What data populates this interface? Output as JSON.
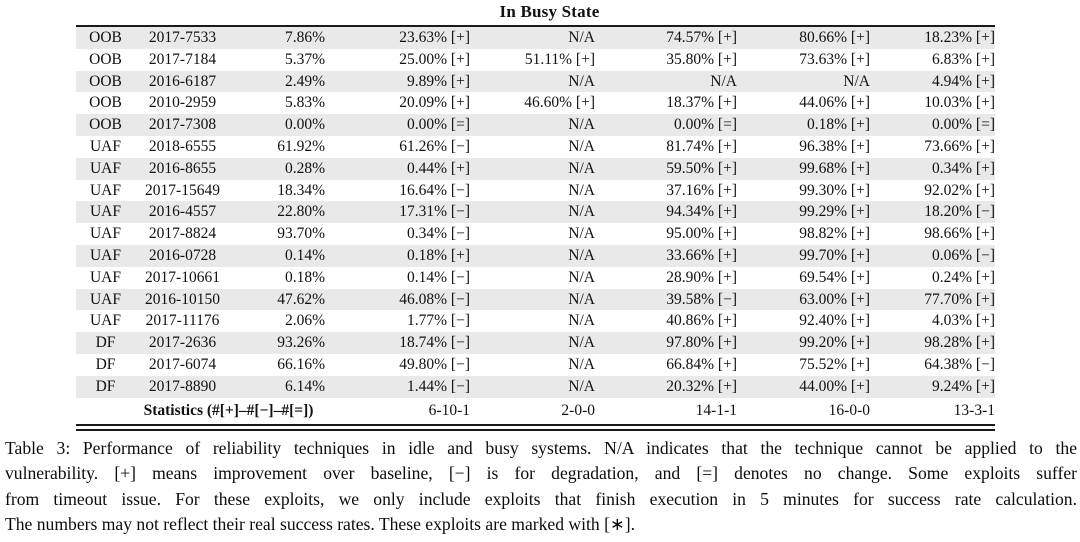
{
  "title": "In Busy State",
  "table": {
    "rows": [
      {
        "cells": [
          "OOB",
          "2017-7533",
          "7.86%",
          "23.63% [+]",
          "N/A",
          "74.57% [+]",
          "80.66% [+]",
          "18.23% [+]"
        ]
      },
      {
        "cells": [
          "OOB",
          "2017-7184",
          "5.37%",
          "25.00% [+]",
          "51.11% [+]",
          "35.80% [+]",
          "73.63% [+]",
          "6.83% [+]"
        ]
      },
      {
        "cells": [
          "OOB",
          "2016-6187",
          "2.49%",
          "9.89% [+]",
          "N/A",
          "N/A",
          "N/A",
          "4.94% [+]"
        ]
      },
      {
        "cells": [
          "OOB",
          "2010-2959",
          "5.83%",
          "20.09% [+]",
          "46.60% [+]",
          "18.37% [+]",
          "44.06% [+]",
          "10.03% [+]"
        ]
      },
      {
        "cells": [
          "OOB",
          "2017-7308",
          "0.00%",
          "0.00% [=]",
          "N/A",
          "0.00% [=]",
          "0.18% [+]",
          "0.00% [=]"
        ]
      },
      {
        "cells": [
          "UAF",
          "2018-6555",
          "61.92%",
          "61.26% [−]",
          "N/A",
          "81.74% [+]",
          "96.38% [+]",
          "73.66% [+]"
        ]
      },
      {
        "cells": [
          "UAF",
          "2016-8655",
          "0.28%",
          "0.44% [+]",
          "N/A",
          "59.50% [+]",
          "99.68% [+]",
          "0.34% [+]"
        ]
      },
      {
        "cells": [
          "UAF",
          "2017-15649",
          "18.34%",
          "16.64% [−]",
          "N/A",
          "37.16% [+]",
          "99.30% [+]",
          "92.02% [+]"
        ]
      },
      {
        "cells": [
          "UAF",
          "2016-4557",
          "22.80%",
          "17.31% [−]",
          "N/A",
          "94.34% [+]",
          "99.29% [+]",
          "18.20% [−]"
        ]
      },
      {
        "cells": [
          "UAF",
          "2017-8824",
          "93.70%",
          "0.34% [−]",
          "N/A",
          "95.00% [+]",
          "98.82% [+]",
          "98.66% [+]"
        ]
      },
      {
        "cells": [
          "UAF",
          "2016-0728",
          "0.14%",
          "0.18% [+]",
          "N/A",
          "33.66% [+]",
          "99.70% [+]",
          "0.06% [−]"
        ]
      },
      {
        "cells": [
          "UAF",
          "2017-10661",
          "0.18%",
          "0.14% [−]",
          "N/A",
          "28.90% [+]",
          "69.54% [+]",
          "0.24% [+]"
        ]
      },
      {
        "cells": [
          "UAF",
          "2016-10150",
          "47.62%",
          "46.08% [−]",
          "N/A",
          "39.58% [−]",
          "63.00% [+]",
          "77.70% [+]"
        ]
      },
      {
        "cells": [
          "UAF",
          "2017-11176",
          "2.06%",
          "1.77% [−]",
          "N/A",
          "40.86% [+]",
          "92.40% [+]",
          "4.03% [+]"
        ]
      },
      {
        "cells": [
          "DF",
          "2017-2636",
          "93.26%",
          "18.74% [−]",
          "N/A",
          "97.80% [+]",
          "99.20% [+]",
          "98.28% [+]"
        ]
      },
      {
        "cells": [
          "DF",
          "2017-6074",
          "66.16%",
          "49.80% [−]",
          "N/A",
          "66.84% [+]",
          "75.52% [+]",
          "64.38% [−]"
        ]
      },
      {
        "cells": [
          "DF",
          "2017-8890",
          "6.14%",
          "1.44% [−]",
          "N/A",
          "20.32% [+]",
          "44.00% [+]",
          "9.24% [+]"
        ]
      }
    ],
    "statistics": {
      "label": "Statistics (#[+]–#[−]–#[=])",
      "values": [
        "6-10-1",
        "2-0-0",
        "14-1-1",
        "16-0-0",
        "13-3-1"
      ]
    },
    "row_shading_color": "#e9e9e9"
  },
  "caption_lines": [
    "Table 3: Performance of reliability techniques in idle and busy systems. N/A indicates that the technique cannot be applied to the",
    "vulnerability. [+] means improvement over baseline, [−] is for degradation, and [=] denotes no change. Some exploits suffer",
    "from timeout issue. For these exploits, we only include exploits that finish execution in 5 minutes for success rate calculation.",
    "The numbers may not reflect their real success rates. These exploits are marked with [∗]."
  ]
}
